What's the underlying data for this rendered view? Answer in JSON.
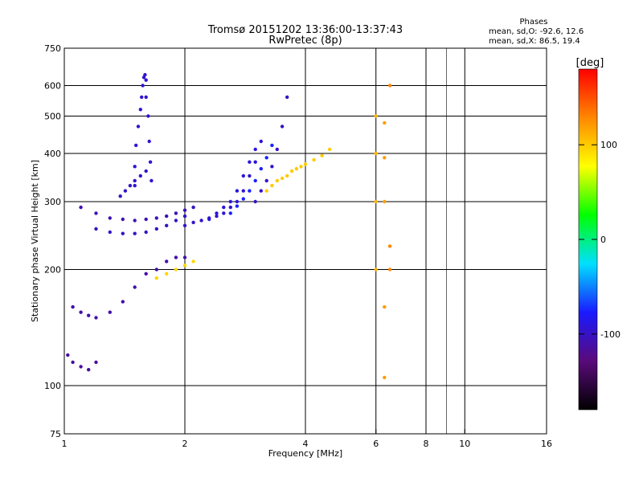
{
  "chart_data": {
    "type": "scatter",
    "title": "Tromsø 20151202 13:36:00-13:37:43",
    "subtitle": "RwPretec (8p)",
    "info": {
      "heading": "Phases",
      "line1": "mean, sd,O: -92.6, 12.6",
      "line2": "mean, sd,X:  86.5, 19.4"
    },
    "xlabel": "Frequency [MHz]",
    "ylabel": "Stationary phase Virtual Height [km]",
    "x_scale": "log",
    "y_scale": "log",
    "xlim": [
      1,
      16
    ],
    "ylim": [
      75,
      750
    ],
    "x_ticks": [
      1,
      2,
      4,
      6,
      8,
      10,
      16
    ],
    "x_tick_labels": [
      "1",
      "2",
      "4",
      "6",
      "8",
      "10",
      "16"
    ],
    "x_grid": [
      2,
      4,
      6,
      8,
      10
    ],
    "x_minor": [
      9
    ],
    "y_ticks": [
      75,
      100,
      200,
      300,
      400,
      500,
      600,
      750
    ],
    "y_tick_labels": [
      "75",
      "100",
      "200",
      "300",
      "400",
      "500",
      "600",
      "750"
    ],
    "y_grid": [
      100,
      200,
      300,
      400,
      500,
      600
    ],
    "grid": true,
    "colorbar": {
      "label": "[deg]",
      "range": [
        -180,
        180
      ],
      "tick_values": [
        100,
        0,
        -100
      ],
      "tick_labels": [
        "100",
        "0",
        "-100"
      ],
      "stops": [
        "#000000",
        "#5a0a7a",
        "#1a1aff",
        "#00e0ff",
        "#00ff00",
        "#ffff00",
        "#ff8800",
        "#ff0000"
      ]
    },
    "series": [
      {
        "x": [
          1.5,
          1.5,
          1.51,
          1.53,
          1.55,
          1.56,
          1.57,
          1.58,
          1.59,
          1.6,
          1.6,
          1.62,
          1.63,
          1.64,
          1.65
        ],
        "y": [
          330,
          370,
          420,
          470,
          520,
          560,
          600,
          630,
          640,
          620,
          560,
          500,
          430,
          380,
          340
        ],
        "phase": -95
      },
      {
        "x": [
          1.38,
          1.42,
          1.46,
          1.5,
          1.55,
          1.6
        ],
        "y": [
          310,
          320,
          330,
          340,
          350,
          360
        ],
        "phase": -100
      },
      {
        "x": [
          1.1,
          1.2,
          1.3,
          1.4,
          1.5,
          1.6,
          1.7,
          1.8,
          1.9,
          2.0
        ],
        "y": [
          290,
          280,
          272,
          270,
          268,
          270,
          272,
          275,
          280,
          285
        ],
        "phase": -105
      },
      {
        "x": [
          1.2,
          1.3,
          1.4,
          1.5,
          1.6,
          1.7,
          1.8,
          1.9,
          2.0,
          2.1
        ],
        "y": [
          255,
          250,
          248,
          248,
          250,
          255,
          260,
          268,
          275,
          290
        ],
        "phase": -100
      },
      {
        "x": [
          2.0,
          2.1,
          2.2,
          2.3,
          2.4,
          2.5,
          2.6,
          2.7,
          2.8,
          2.9,
          3.0
        ],
        "y": [
          260,
          265,
          268,
          272,
          275,
          280,
          290,
          300,
          320,
          350,
          380
        ],
        "phase": -95
      },
      {
        "x": [
          2.3,
          2.4,
          2.5,
          2.6,
          2.7,
          2.8,
          2.9,
          3.0,
          3.1
        ],
        "y": [
          270,
          280,
          290,
          300,
          320,
          350,
          380,
          410,
          430
        ],
        "phase": -90
      },
      {
        "x": [
          2.6,
          2.7,
          2.8,
          2.9,
          3.0,
          3.1,
          3.2,
          3.3
        ],
        "y": [
          280,
          292,
          305,
          320,
          340,
          365,
          390,
          420
        ],
        "phase": -75
      },
      {
        "x": [
          3.0,
          3.1,
          3.2,
          3.3,
          3.4,
          3.5,
          3.6
        ],
        "y": [
          300,
          320,
          340,
          370,
          410,
          470,
          560
        ],
        "phase": -100
      },
      {
        "x": [
          3.2,
          3.3,
          3.4,
          3.5,
          3.6,
          3.7,
          3.8,
          3.9,
          4.0,
          4.2,
          4.4,
          4.6
        ],
        "y": [
          320,
          330,
          340,
          345,
          350,
          360,
          365,
          370,
          375,
          385,
          395,
          410
        ],
        "phase": 100
      },
      {
        "x": [
          1.05,
          1.1,
          1.15,
          1.2,
          1.3,
          1.4,
          1.5,
          1.6,
          1.7,
          1.8,
          1.9,
          2.0
        ],
        "y": [
          160,
          155,
          152,
          150,
          155,
          165,
          180,
          195,
          200,
          210,
          215,
          215
        ],
        "phase": -110
      },
      {
        "x": [
          1.7,
          1.8,
          1.9,
          2.0,
          2.1
        ],
        "y": [
          190,
          195,
          200,
          205,
          210
        ],
        "phase": 95
      },
      {
        "x": [
          1.02,
          1.05,
          1.1,
          1.15,
          1.2
        ],
        "y": [
          120,
          115,
          112,
          110,
          115
        ],
        "phase": -115
      },
      {
        "x": [
          6.0,
          6.0,
          6.0,
          6.0
        ],
        "y": [
          500,
          400,
          300,
          200
        ],
        "phase": 110
      },
      {
        "x": [
          6.3,
          6.3,
          6.3,
          6.3,
          6.3
        ],
        "y": [
          480,
          390,
          300,
          160,
          105
        ],
        "phase": 120
      },
      {
        "x": [
          6.5,
          6.5,
          6.5
        ],
        "y": [
          600,
          230,
          200
        ],
        "phase": 130
      }
    ]
  }
}
